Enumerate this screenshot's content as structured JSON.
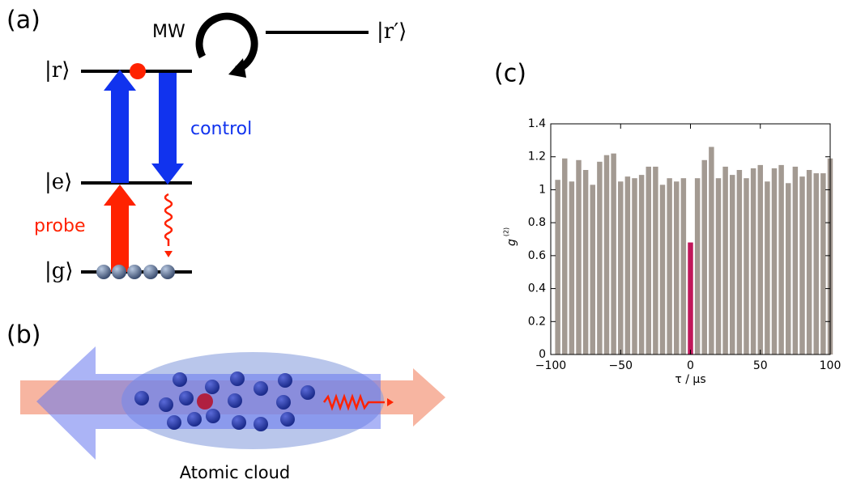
{
  "panel_labels": [
    "(a)",
    "(b)",
    "(c)"
  ],
  "level_diagram": {
    "mw": "MW",
    "r": "|r⟩",
    "r_prime": "|r′⟩",
    "e": "|e⟩",
    "g": "|g⟩",
    "control": "control",
    "probe": "probe"
  },
  "cloud_diagram": {
    "caption": "Atomic cloud"
  },
  "chart_data": {
    "type": "bar",
    "xlabel": "τ / µs",
    "ylabel": "g",
    "ylabel_superscript": "(2)",
    "x": [
      -95,
      -90,
      -85,
      -80,
      -75,
      -70,
      -65,
      -60,
      -55,
      -50,
      -45,
      -40,
      -35,
      -30,
      -25,
      -20,
      -15,
      -10,
      -5,
      0,
      5,
      10,
      15,
      20,
      25,
      30,
      35,
      40,
      45,
      50,
      55,
      60,
      65,
      70,
      75,
      80,
      85,
      90,
      95,
      100
    ],
    "values": [
      1.06,
      1.19,
      1.05,
      1.18,
      1.12,
      1.03,
      1.17,
      1.21,
      1.22,
      1.05,
      1.08,
      1.07,
      1.09,
      1.14,
      1.14,
      1.03,
      1.07,
      1.05,
      1.07,
      0.68,
      1.07,
      1.18,
      1.26,
      1.07,
      1.14,
      1.09,
      1.12,
      1.07,
      1.13,
      1.15,
      1.05,
      1.13,
      1.15,
      1.04,
      1.14,
      1.08,
      1.12,
      1.1,
      1.1,
      1.19
    ],
    "colors": [
      "#a39a92",
      "#a39a92",
      "#a39a92",
      "#a39a92",
      "#a39a92",
      "#a39a92",
      "#a39a92",
      "#a39a92",
      "#a39a92",
      "#a39a92",
      "#a39a92",
      "#a39a92",
      "#a39a92",
      "#a39a92",
      "#a39a92",
      "#a39a92",
      "#a39a92",
      "#a39a92",
      "#a39a92",
      "#c0175a",
      "#a39a92",
      "#a39a92",
      "#a39a92",
      "#a39a92",
      "#a39a92",
      "#a39a92",
      "#a39a92",
      "#a39a92",
      "#a39a92",
      "#a39a92",
      "#a39a92",
      "#a39a92",
      "#a39a92",
      "#a39a92",
      "#a39a92",
      "#a39a92",
      "#a39a92",
      "#a39a92",
      "#a39a92",
      "#a39a92"
    ],
    "xlim": [
      -100,
      100
    ],
    "xticks": [
      {
        "value": -100,
        "label": "−100"
      },
      {
        "value": -50,
        "label": "−50"
      },
      0,
      50,
      100
    ],
    "ylim": [
      0,
      1.4
    ],
    "yticks": [
      0,
      0.2,
      0.4,
      0.6,
      0.8,
      1.0,
      1.2,
      1.4
    ]
  }
}
